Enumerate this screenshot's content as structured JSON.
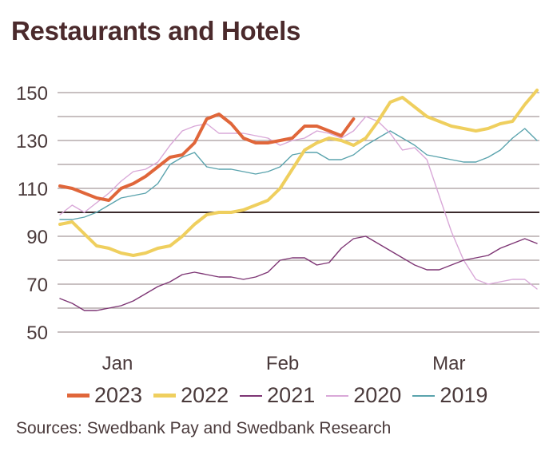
{
  "chart_data": {
    "type": "line",
    "title": "Restaurants and Hotels",
    "xlabel": "",
    "ylabel": "",
    "ylim": [
      50,
      155
    ],
    "yticks": [
      150,
      130,
      110,
      90,
      70,
      50
    ],
    "gridlines": [
      150,
      140,
      130,
      120,
      110,
      100,
      90,
      80,
      70,
      60,
      50
    ],
    "reference_line": 100,
    "grid": true,
    "x_count": 40,
    "xticks": [
      {
        "label": "Jan",
        "index": 4.7
      },
      {
        "label": "Feb",
        "index": 18.2
      },
      {
        "label": "Mar",
        "index": 31.8
      }
    ],
    "legend_position": "bottom",
    "series": [
      {
        "name": "2023",
        "color": "#e0663a",
        "width": 4,
        "values": [
          111,
          110,
          108,
          106,
          105,
          110,
          112,
          115,
          119,
          123,
          124,
          129,
          139,
          141,
          137,
          131,
          129,
          129,
          130,
          131,
          136,
          136,
          134,
          132,
          139,
          null,
          null,
          null,
          null,
          null,
          null,
          null,
          null,
          null,
          null,
          null,
          null,
          null,
          null,
          null
        ]
      },
      {
        "name": "2022",
        "color": "#efcf5e",
        "width": 4,
        "values": [
          95,
          96,
          91,
          86,
          85,
          83,
          82,
          83,
          85,
          86,
          90,
          95,
          99,
          100,
          100,
          101,
          103,
          105,
          110,
          118,
          126,
          129,
          131,
          130,
          128,
          131,
          138,
          146,
          148,
          144,
          140,
          138,
          136,
          135,
          134,
          135,
          137,
          138,
          145,
          151
        ]
      },
      {
        "name": "2021",
        "color": "#7d3574",
        "width": 1.4,
        "values": [
          64,
          62,
          59,
          59,
          60,
          61,
          63,
          66,
          69,
          71,
          74,
          75,
          74,
          73,
          73,
          72,
          73,
          75,
          80,
          81,
          81,
          78,
          79,
          85,
          89,
          90,
          87,
          84,
          81,
          78,
          76,
          76,
          78,
          80,
          81,
          82,
          85,
          87,
          89,
          87
        ]
      },
      {
        "name": "2020",
        "color": "#d9a8d8",
        "width": 1.4,
        "values": [
          99,
          103,
          100,
          104,
          108,
          113,
          117,
          118,
          121,
          128,
          134,
          136,
          137,
          133,
          133,
          133,
          132,
          131,
          128,
          130,
          131,
          134,
          133,
          131,
          134,
          140,
          138,
          133,
          126,
          127,
          122,
          107,
          92,
          80,
          72,
          70,
          71,
          72,
          72,
          68
        ]
      },
      {
        "name": "2019",
        "color": "#5aa3ad",
        "width": 1.4,
        "values": [
          97,
          97,
          98,
          100,
          103,
          106,
          107,
          108,
          112,
          120,
          123,
          125,
          119,
          118,
          118,
          117,
          116,
          117,
          119,
          124,
          125,
          125,
          122,
          122,
          124,
          128,
          131,
          134,
          131,
          128,
          124,
          123,
          122,
          121,
          121,
          123,
          126,
          131,
          135,
          130
        ]
      }
    ]
  },
  "source": "Sources: Swedbank Pay and Swedbank Research"
}
